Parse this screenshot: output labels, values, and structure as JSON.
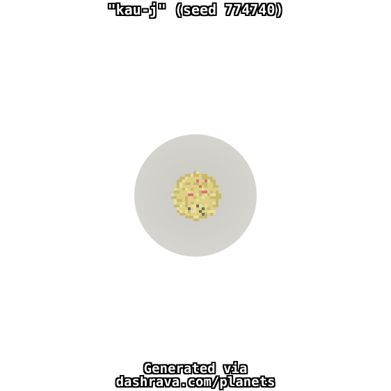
{
  "title": "\"kau-j\" (seed 774740)",
  "footer": {
    "line1": "Generated via",
    "line2": "dashrava.com/planets"
  },
  "colors": {
    "background": "#ffffff",
    "atmosphere_halo": "#d2d1cb",
    "planet_base": "#ddd084",
    "planet_shade": "#c8b96e",
    "planet_highlight": "#e9df9e",
    "spots_pink": "#d9707a",
    "spots_dark": "#6f6d5c",
    "title_text": "#ffffff",
    "title_outline": "#000000"
  }
}
